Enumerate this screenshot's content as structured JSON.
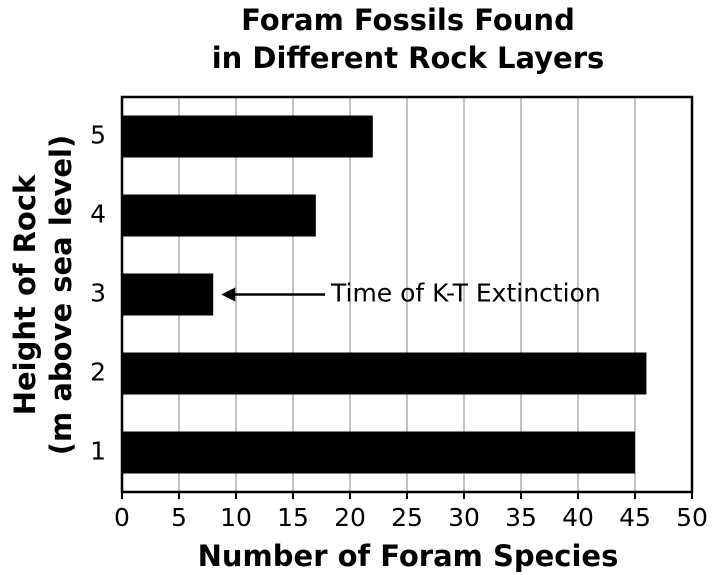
{
  "chart_data": {
    "type": "barh",
    "title": [
      "Foram Fossils Found",
      "in Different Rock Layers"
    ],
    "xlabel": "Number of Foram Species",
    "ylabel": [
      "Height of Rock",
      "(m above sea level)"
    ],
    "categories": [
      "1",
      "2",
      "3",
      "4",
      "5"
    ],
    "values": [
      45,
      46,
      8,
      17,
      22
    ],
    "color": "#000000",
    "xlim": [
      0,
      50
    ],
    "xticks": [
      0,
      5,
      10,
      15,
      20,
      25,
      30,
      35,
      40,
      45,
      50
    ],
    "grid": true,
    "annotation": "Time of K-T Extinction"
  }
}
